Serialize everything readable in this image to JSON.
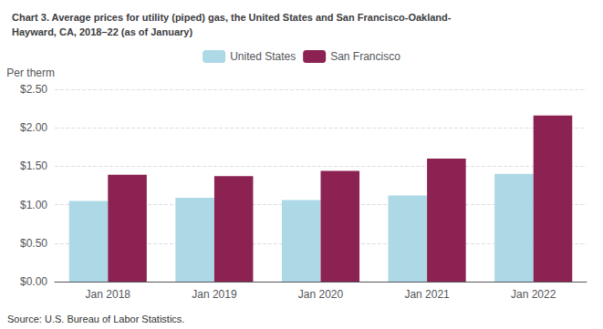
{
  "chart_data": {
    "type": "bar",
    "title": "Chart 3. Average prices for utility (piped) gas, the United States and San Francisco-Oakland-\nHayward, CA, 2018–22 (as of January)",
    "ylabel": "Per therm",
    "source": "Source: U.S. Bureau of Labor Statistics.",
    "categories": [
      "Jan 2018",
      "Jan 2019",
      "Jan 2020",
      "Jan 2021",
      "Jan 2022"
    ],
    "series": [
      {
        "name": "United States",
        "color": "#add8e6",
        "values": [
          1.05,
          1.09,
          1.06,
          1.12,
          1.4
        ]
      },
      {
        "name": "San Francisco",
        "color": "#8B2252",
        "values": [
          1.39,
          1.37,
          1.44,
          1.6,
          2.16
        ]
      }
    ],
    "ylim": [
      0,
      2.5
    ],
    "yticks": [
      {
        "value": 0,
        "label": "$0.00"
      },
      {
        "value": 0.5,
        "label": "$0.50"
      },
      {
        "value": 1,
        "label": "$1.00"
      },
      {
        "value": 1.5,
        "label": "$1.50"
      },
      {
        "value": 2,
        "label": "$2.00"
      },
      {
        "value": 2.5,
        "label": "$2.50"
      }
    ],
    "grid": true,
    "legend": "top"
  }
}
